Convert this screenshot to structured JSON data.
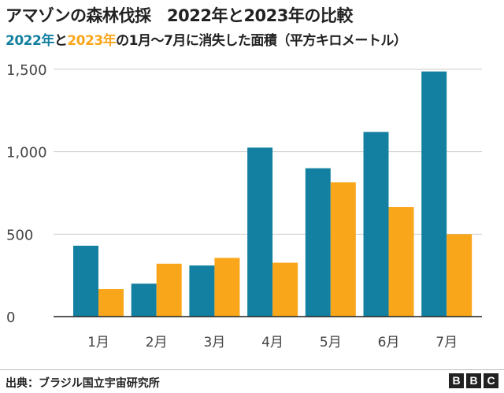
{
  "title": "アマゾンの森林伐採　2022年と2023年の比較",
  "subtitle": {
    "part_2022": "2022年",
    "part_and": "と",
    "part_2023": "2023年",
    "part_rest": "の1月～7月に消失した面積（平方キロメートル）"
  },
  "source": "出典：ブラジル国立宇宙研究所",
  "logo": [
    "B",
    "B",
    "C"
  ],
  "colors": {
    "series_2022": "#1380A1",
    "series_2023": "#FAA61A",
    "grid": "#cccccc",
    "axis": "#222222",
    "text": "#222222"
  },
  "chart_data": {
    "type": "bar",
    "categories": [
      "1月",
      "2月",
      "3月",
      "4月",
      "5月",
      "6月",
      "7月"
    ],
    "series": [
      {
        "name": "2022年",
        "values": [
          430,
          200,
          310,
          1025,
          900,
          1120,
          1487
        ]
      },
      {
        "name": "2023年",
        "values": [
          167,
          321,
          356,
          327,
          815,
          664,
          500
        ]
      }
    ],
    "yticks": [
      0,
      500,
      1000,
      1500
    ],
    "ytick_labels": [
      "0",
      "500",
      "1,000",
      "1,500"
    ],
    "ylim": [
      0,
      1500
    ],
    "grid": true,
    "legend": "subtitle"
  }
}
